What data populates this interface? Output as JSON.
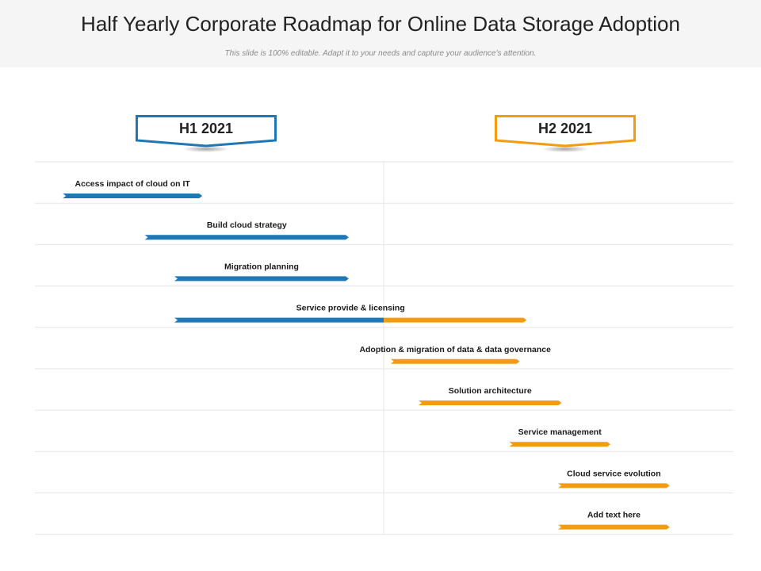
{
  "header": {
    "title": "Half Yearly Corporate Roadmap for Online Data Storage Adoption",
    "subtitle": "This slide is 100% editable. Adapt it to your needs and capture your audience's attention."
  },
  "colors": {
    "h1": "#1f77b4",
    "h2": "#f39c12",
    "grid": "#e6e6e6"
  },
  "phases": [
    {
      "label": "H1 2021",
      "color": "#1f77b4"
    },
    {
      "label": "H2 2021",
      "color": "#f39c12"
    }
  ],
  "tasks": [
    {
      "label": "Access impact of cloud on IT",
      "start": 0.08,
      "end": 0.48
    },
    {
      "label": "Build cloud strategy",
      "start": 0.315,
      "end": 0.9
    },
    {
      "label": "Migration planning",
      "start": 0.4,
      "end": 0.9
    },
    {
      "label": "Service provide & licensing",
      "start": 0.4,
      "end": 1.41
    },
    {
      "label": "Adoption & migration of data & data governance",
      "start": 1.02,
      "end": 1.39
    },
    {
      "label": "Solution architecture",
      "start": 1.1,
      "end": 1.51
    },
    {
      "label": "Service management",
      "start": 1.36,
      "end": 1.65
    },
    {
      "label": "Cloud service evolution",
      "start": 1.5,
      "end": 1.82
    },
    {
      "label": "Add text here",
      "start": 1.5,
      "end": 1.82
    }
  ]
}
